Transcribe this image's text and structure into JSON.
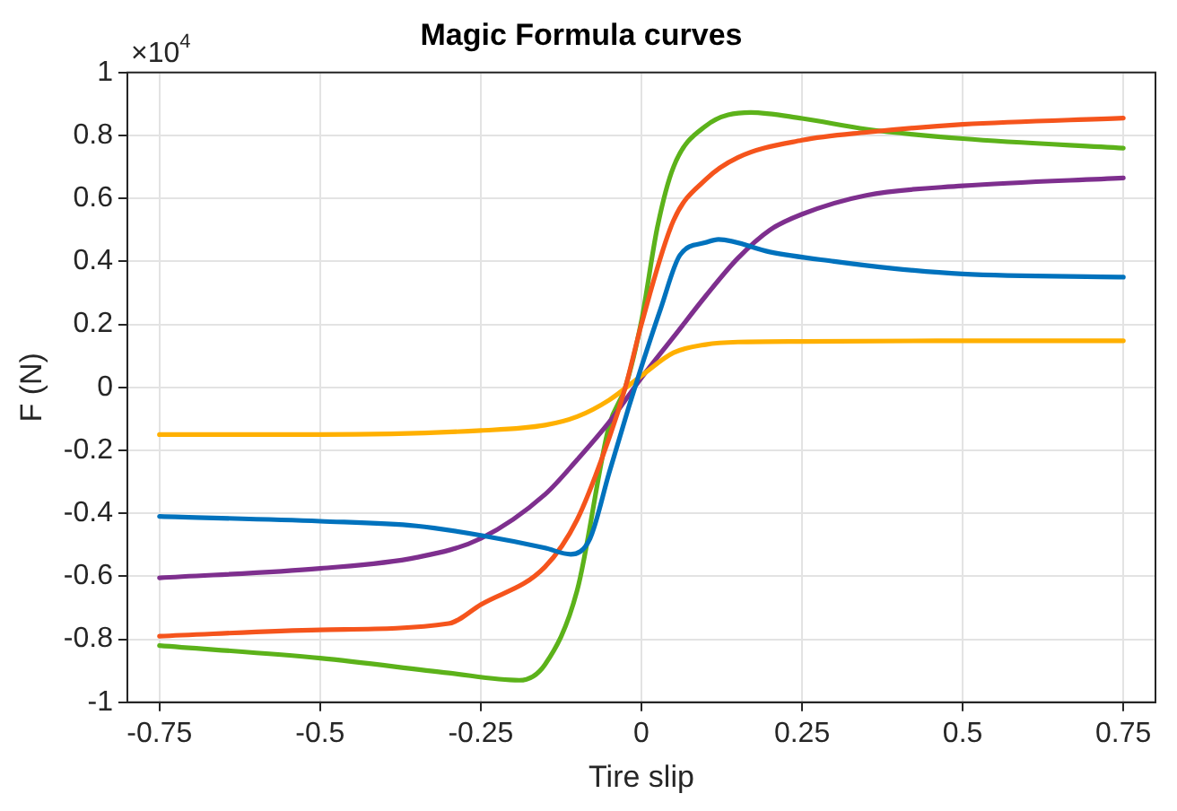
{
  "chart_data": {
    "type": "line",
    "title": "Magic Formula curves",
    "xlabel": "Tire slip",
    "ylabel": "F (N)",
    "annotations": [
      "×10$^{4}$"
    ],
    "xlim": [
      -0.8,
      0.8
    ],
    "xticks": [
      -0.75,
      -0.5,
      -0.25,
      0,
      0.25,
      0.5,
      0.75
    ],
    "ylim": [
      -1,
      1
    ],
    "yticks": [
      -1,
      -0.8,
      -0.6,
      -0.4,
      -0.2,
      0,
      0.2,
      0.4,
      0.6,
      0.8,
      1
    ],
    "grid": true,
    "legend": false,
    "marker": "none",
    "line_style": "solid",
    "series": [
      {
        "color": "#0072bd",
        "x": [
          -0.75,
          -0.5,
          -0.35,
          -0.25,
          -0.15,
          -0.11,
          -0.08,
          -0.05,
          -0.02,
          0,
          0.03,
          0.06,
          0.1,
          0.12,
          0.2,
          0.3,
          0.39,
          0.5,
          0.75
        ],
        "values": [
          -0.41,
          -0.425,
          -0.44,
          -0.47,
          -0.51,
          -0.53,
          -0.48,
          -0.27,
          -0.065,
          0.065,
          0.25,
          0.42,
          0.46,
          0.47,
          0.43,
          0.4,
          0.378,
          0.36,
          0.35
        ]
      },
      {
        "color": "#f5541c",
        "x": [
          -0.75,
          -0.5,
          -0.3,
          -0.25,
          -0.15,
          -0.1,
          -0.05,
          -0.025,
          0,
          0.05,
          0.1,
          0.15,
          0.25,
          0.35,
          0.5,
          0.75
        ],
        "values": [
          -0.79,
          -0.77,
          -0.75,
          -0.69,
          -0.57,
          -0.42,
          -0.16,
          0,
          0.2,
          0.53,
          0.66,
          0.73,
          0.785,
          0.81,
          0.835,
          0.855
        ]
      },
      {
        "color": "#ffb000",
        "x": [
          -0.75,
          -0.5,
          -0.25,
          -0.15,
          -0.1,
          -0.05,
          0,
          0.05,
          0.1,
          0.15,
          0.25,
          0.5,
          0.75
        ],
        "values": [
          -0.15,
          -0.15,
          -0.137,
          -0.12,
          -0.093,
          -0.04,
          0.037,
          0.11,
          0.136,
          0.144,
          0.146,
          0.148,
          0.148
        ]
      },
      {
        "color": "#7e2f8e",
        "x": [
          -0.75,
          -0.5,
          -0.35,
          -0.25,
          -0.15,
          -0.1,
          -0.05,
          0,
          0.05,
          0.1,
          0.15,
          0.2,
          0.25,
          0.35,
          0.5,
          0.75
        ],
        "values": [
          -0.605,
          -0.575,
          -0.54,
          -0.48,
          -0.34,
          -0.23,
          -0.11,
          0.03,
          0.16,
          0.29,
          0.41,
          0.5,
          0.55,
          0.61,
          0.64,
          0.665
        ]
      },
      {
        "color": "#5cb21a",
        "x": [
          -0.75,
          -0.5,
          -0.3,
          -0.19,
          -0.15,
          -0.1,
          -0.05,
          -0.025,
          0,
          0.025,
          0.05,
          0.1,
          0.17,
          0.25,
          0.35,
          0.5,
          0.75
        ],
        "values": [
          -0.82,
          -0.86,
          -0.907,
          -0.93,
          -0.88,
          -0.645,
          -0.12,
          0,
          0.21,
          0.51,
          0.7,
          0.83,
          0.873,
          0.854,
          0.82,
          0.79,
          0.76
        ]
      }
    ]
  }
}
